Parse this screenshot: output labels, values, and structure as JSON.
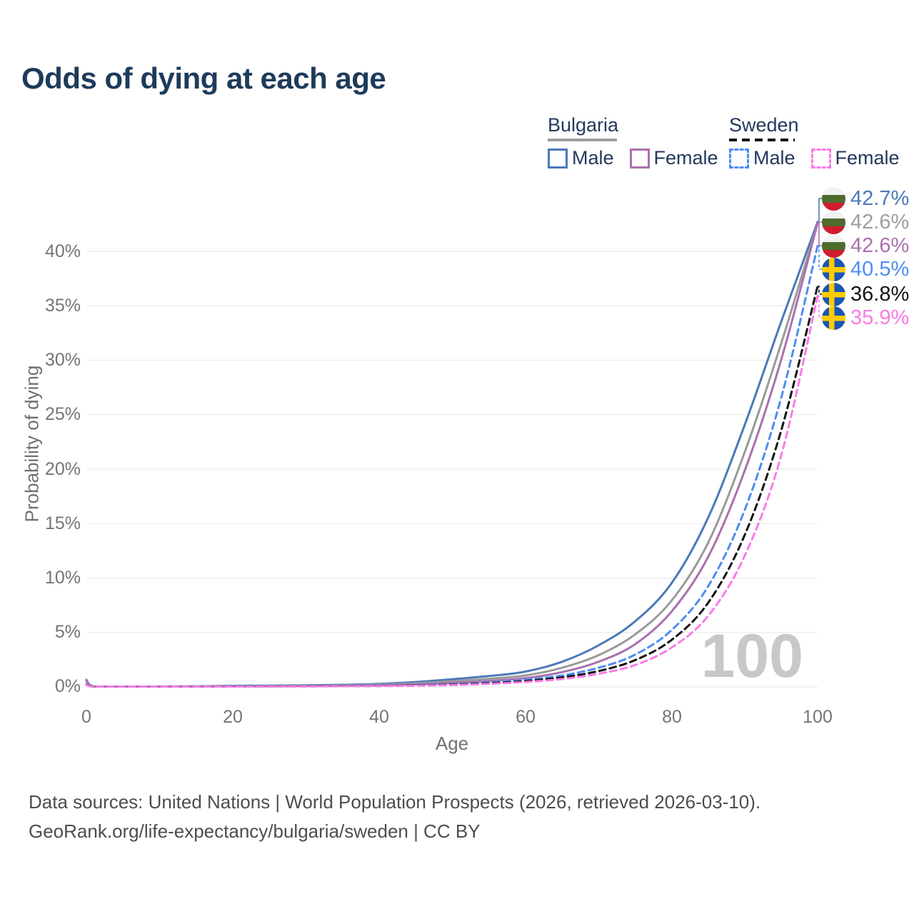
{
  "header": {
    "title": "Odds of dying at each age"
  },
  "legend": {
    "groups": [
      {
        "country": "Bulgaria",
        "line_style": "solid",
        "underline_color": "#9e9e9e",
        "items": [
          {
            "label": "Male",
            "color": "#4a79b8"
          },
          {
            "label": "Female",
            "color": "#ab70af"
          }
        ]
      },
      {
        "country": "Sweden",
        "line_style": "dashed",
        "underline_color": "#141414",
        "items": [
          {
            "label": "Male",
            "color": "#4d8df2"
          },
          {
            "label": "Female",
            "color": "#fa7ae6"
          }
        ]
      }
    ]
  },
  "chart": {
    "y_axis_label": "Probability of dying",
    "x_axis_label": "Age",
    "y_ticks": [
      "0%",
      "5%",
      "10%",
      "15%",
      "20%",
      "25%",
      "30%",
      "35%",
      "40%"
    ],
    "x_ticks": [
      "0",
      "20",
      "40",
      "60",
      "80",
      "100"
    ],
    "watermark": "100",
    "grid_color": "#ebebeb"
  },
  "end_labels": [
    {
      "value": "42.7%",
      "flag": "bulgaria",
      "color": "#4a79b8"
    },
    {
      "value": "42.6%",
      "flag": "bulgaria",
      "color": "#9e9e9e"
    },
    {
      "value": "42.6%",
      "flag": "bulgaria",
      "color": "#ab70af"
    },
    {
      "value": "40.5%",
      "flag": "sweden",
      "color": "#4d8df2"
    },
    {
      "value": "36.8%",
      "flag": "sweden",
      "color": "#141414"
    },
    {
      "value": "35.9%",
      "flag": "sweden",
      "color": "#fa7ae6"
    }
  ],
  "footer": {
    "line1": "Data sources: United Nations | World Population Prospects (2026, retrieved 2026-03-10).",
    "line2": "GeoRank.org/life-expectancy/bulgaria/sweden | CC BY"
  },
  "chart_data": {
    "type": "line",
    "title": "Odds of dying at each age",
    "xlabel": "Age",
    "ylabel": "Probability of dying",
    "xlim": [
      0,
      100
    ],
    "ylim": [
      0,
      45
    ],
    "grid": "horizontal",
    "legend_position": "top-right",
    "x": [
      0,
      1,
      5,
      10,
      15,
      20,
      25,
      30,
      35,
      40,
      45,
      50,
      55,
      60,
      65,
      70,
      75,
      80,
      85,
      90,
      95,
      100
    ],
    "series": [
      {
        "name": "Bulgaria Male",
        "style": "solid",
        "color": "#4a79b8",
        "end_label": "42.7%",
        "values": [
          0.66,
          0.05,
          0.03,
          0.04,
          0.06,
          0.1,
          0.12,
          0.15,
          0.2,
          0.28,
          0.45,
          0.7,
          1.0,
          1.4,
          2.3,
          3.8,
          6.0,
          9.5,
          15.5,
          24.0,
          33.5,
          42.7
        ]
      },
      {
        "name": "Bulgaria Both sexes",
        "style": "solid",
        "color": "#9a9a9a",
        "end_label": "42.6%",
        "values": [
          0.6,
          0.04,
          0.02,
          0.03,
          0.05,
          0.07,
          0.09,
          0.11,
          0.15,
          0.21,
          0.33,
          0.52,
          0.75,
          1.05,
          1.75,
          2.9,
          4.8,
          7.9,
          13.2,
          21.5,
          31.5,
          42.6
        ]
      },
      {
        "name": "Bulgaria Female",
        "style": "solid",
        "color": "#ab70af",
        "end_label": "42.6%",
        "values": [
          0.55,
          0.04,
          0.02,
          0.02,
          0.03,
          0.05,
          0.06,
          0.08,
          0.1,
          0.15,
          0.23,
          0.36,
          0.55,
          0.8,
          1.35,
          2.3,
          3.9,
          6.9,
          11.9,
          19.8,
          30.0,
          42.6
        ]
      },
      {
        "name": "Sweden Male",
        "style": "dashed",
        "color": "#4d8df2",
        "end_label": "40.5%",
        "values": [
          0.25,
          0.02,
          0.01,
          0.01,
          0.02,
          0.05,
          0.06,
          0.07,
          0.08,
          0.11,
          0.16,
          0.25,
          0.42,
          0.65,
          1.05,
          1.75,
          2.95,
          5.2,
          9.2,
          16.2,
          26.5,
          40.5
        ]
      },
      {
        "name": "Sweden Both sexes",
        "style": "dashed",
        "color": "#141414",
        "end_label": "36.8%",
        "values": [
          0.22,
          0.02,
          0.01,
          0.01,
          0.02,
          0.04,
          0.05,
          0.06,
          0.07,
          0.09,
          0.13,
          0.21,
          0.34,
          0.54,
          0.88,
          1.45,
          2.45,
          4.3,
          7.7,
          13.9,
          23.5,
          36.8
        ]
      },
      {
        "name": "Sweden Female",
        "style": "dashed",
        "color": "#fa7ae6",
        "end_label": "35.9%",
        "values": [
          0.2,
          0.01,
          0.01,
          0.01,
          0.01,
          0.03,
          0.04,
          0.05,
          0.06,
          0.08,
          0.11,
          0.17,
          0.28,
          0.45,
          0.72,
          1.2,
          2.0,
          3.6,
          6.5,
          12.0,
          21.2,
          35.9
        ]
      }
    ]
  }
}
